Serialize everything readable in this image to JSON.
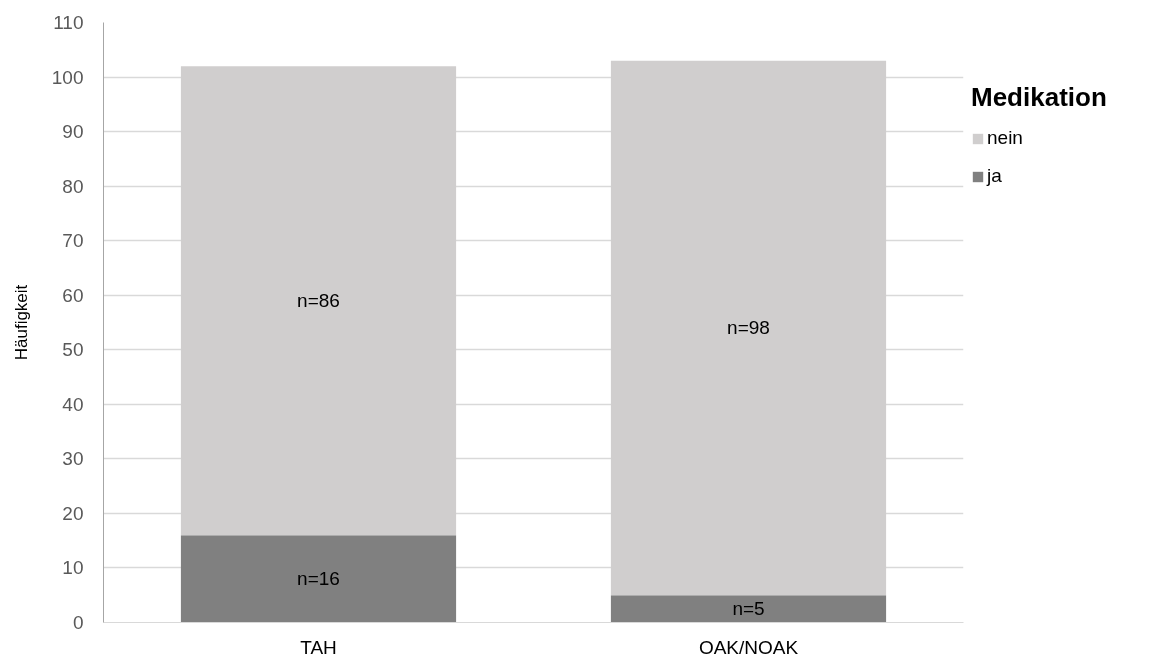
{
  "chart_data": {
    "type": "bar",
    "stacked": true,
    "categories": [
      "TAH",
      "OAK/NOAK"
    ],
    "ylabel": "Häufigkeit",
    "legend_title": "Medikation",
    "series": [
      {
        "name": "ja",
        "color": "#808080",
        "values": [
          16,
          5
        ],
        "value_labels": [
          "n=16",
          "n=5"
        ]
      },
      {
        "name": "nein",
        "color": "#d0cece",
        "values": [
          86,
          98
        ],
        "value_labels": [
          "n=86",
          "n=98"
        ]
      }
    ],
    "ylim": [
      0,
      110
    ],
    "yticks": [
      0,
      10,
      20,
      30,
      40,
      50,
      60,
      70,
      80,
      90,
      100,
      110
    ],
    "grid": "y",
    "legend": "right"
  }
}
